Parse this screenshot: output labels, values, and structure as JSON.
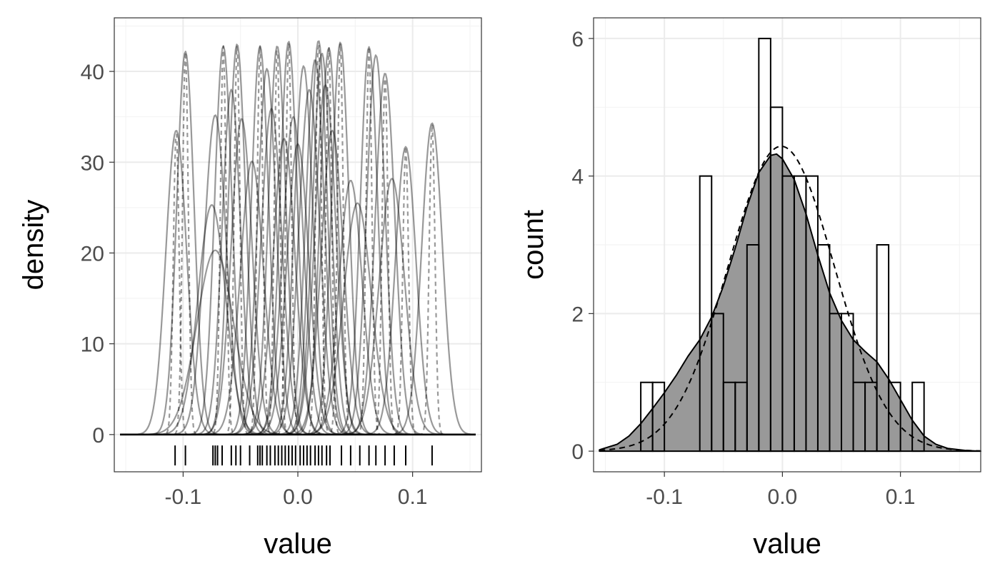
{
  "chart_data": [
    {
      "type": "line",
      "xlabel": "value",
      "ylabel": "density",
      "xlim": [
        -0.16,
        0.16
      ],
      "ylim": [
        -4.1,
        45.9
      ],
      "x_ticks": [
        -0.1,
        0.0,
        0.1
      ],
      "x_tick_labels": [
        "-0.1",
        "0.0",
        "0.1"
      ],
      "y_ticks": [
        0,
        10,
        20,
        30,
        40
      ],
      "y_tick_labels": [
        "0",
        "10",
        "20",
        "30",
        "40"
      ],
      "grid": true,
      "curve_support": [
        -0.155,
        0.155
      ],
      "line_color": "#000000",
      "line_opacity": 0.4,
      "rug_positions": [
        -0.107,
        -0.098,
        -0.074,
        -0.072,
        -0.07,
        -0.066,
        -0.058,
        -0.054,
        -0.05,
        -0.042,
        -0.035,
        -0.033,
        -0.031,
        -0.027,
        -0.024,
        -0.02,
        -0.017,
        -0.014,
        -0.011,
        -0.008,
        -0.005,
        -0.002,
        0.002,
        0.005,
        0.008,
        0.011,
        0.015,
        0.018,
        0.021,
        0.025,
        0.028,
        0.038,
        0.046,
        0.054,
        0.062,
        0.068,
        0.076,
        0.084,
        0.094,
        0.117
      ],
      "series": [
        {
          "mu": -0.106,
          "sigma": 0.009,
          "peak": 33.5,
          "dashed": false
        },
        {
          "mu": -0.106,
          "sigma": 0.0025,
          "peak": 33.5,
          "dashed": true
        },
        {
          "mu": -0.098,
          "sigma": 0.0075,
          "peak": 42.2,
          "dashed": false
        },
        {
          "mu": -0.098,
          "sigma": 0.0025,
          "peak": 42.2,
          "dashed": true
        },
        {
          "mu": -0.075,
          "sigma": 0.012,
          "peak": 25.3,
          "dashed": false
        },
        {
          "mu": -0.072,
          "sigma": 0.016,
          "peak": 20.3,
          "dashed": false
        },
        {
          "mu": -0.072,
          "sigma": 0.0095,
          "peak": 35.2,
          "dashed": false
        },
        {
          "mu": -0.065,
          "sigma": 0.0075,
          "peak": 42.8,
          "dashed": false
        },
        {
          "mu": -0.065,
          "sigma": 0.0025,
          "peak": 42.8,
          "dashed": true
        },
        {
          "mu": -0.058,
          "sigma": 0.008,
          "peak": 38.0,
          "dashed": false
        },
        {
          "mu": -0.053,
          "sigma": 0.0075,
          "peak": 43.0,
          "dashed": false
        },
        {
          "mu": -0.053,
          "sigma": 0.0025,
          "peak": 43.0,
          "dashed": true
        },
        {
          "mu": -0.049,
          "sigma": 0.009,
          "peak": 34.8,
          "dashed": false
        },
        {
          "mu": -0.04,
          "sigma": 0.01,
          "peak": 30.1,
          "dashed": false
        },
        {
          "mu": -0.033,
          "sigma": 0.0075,
          "peak": 42.8,
          "dashed": false
        },
        {
          "mu": -0.033,
          "sigma": 0.0025,
          "peak": 42.8,
          "dashed": true
        },
        {
          "mu": -0.027,
          "sigma": 0.008,
          "peak": 40.3,
          "dashed": false
        },
        {
          "mu": -0.023,
          "sigma": 0.009,
          "peak": 35.9,
          "dashed": false
        },
        {
          "mu": -0.018,
          "sigma": 0.0075,
          "peak": 42.8,
          "dashed": false
        },
        {
          "mu": -0.018,
          "sigma": 0.0025,
          "peak": 42.8,
          "dashed": true
        },
        {
          "mu": -0.012,
          "sigma": 0.0095,
          "peak": 32.6,
          "dashed": false
        },
        {
          "mu": -0.008,
          "sigma": 0.0075,
          "peak": 43.3,
          "dashed": false
        },
        {
          "mu": -0.008,
          "sigma": 0.0025,
          "peak": 43.3,
          "dashed": true
        },
        {
          "mu": -0.004,
          "sigma": 0.009,
          "peak": 35.0,
          "dashed": false
        },
        {
          "mu": 0.0,
          "sigma": 0.0095,
          "peak": 32.0,
          "dashed": false
        },
        {
          "mu": 0.005,
          "sigma": 0.008,
          "peak": 40.6,
          "dashed": false
        },
        {
          "mu": 0.01,
          "sigma": 0.009,
          "peak": 38.0,
          "dashed": false
        },
        {
          "mu": 0.015,
          "sigma": 0.008,
          "peak": 41.3,
          "dashed": false
        },
        {
          "mu": 0.018,
          "sigma": 0.0075,
          "peak": 43.4,
          "dashed": false
        },
        {
          "mu": 0.018,
          "sigma": 0.0025,
          "peak": 43.4,
          "dashed": true
        },
        {
          "mu": 0.021,
          "sigma": 0.008,
          "peak": 42.0,
          "dashed": false
        },
        {
          "mu": 0.024,
          "sigma": 0.009,
          "peak": 38.5,
          "dashed": false
        },
        {
          "mu": 0.027,
          "sigma": 0.0075,
          "peak": 42.6,
          "dashed": false
        },
        {
          "mu": 0.027,
          "sigma": 0.0025,
          "peak": 42.6,
          "dashed": true
        },
        {
          "mu": 0.03,
          "sigma": 0.0095,
          "peak": 33.5,
          "dashed": false
        },
        {
          "mu": 0.037,
          "sigma": 0.0075,
          "peak": 43.2,
          "dashed": false
        },
        {
          "mu": 0.037,
          "sigma": 0.0025,
          "peak": 43.2,
          "dashed": true
        },
        {
          "mu": 0.046,
          "sigma": 0.01,
          "peak": 28.0,
          "dashed": false
        },
        {
          "mu": 0.052,
          "sigma": 0.012,
          "peak": 25.5,
          "dashed": false
        },
        {
          "mu": 0.062,
          "sigma": 0.0075,
          "peak": 42.7,
          "dashed": false
        },
        {
          "mu": 0.062,
          "sigma": 0.0025,
          "peak": 42.7,
          "dashed": true
        },
        {
          "mu": 0.068,
          "sigma": 0.008,
          "peak": 41.8,
          "dashed": false
        },
        {
          "mu": 0.076,
          "sigma": 0.0085,
          "peak": 39.8,
          "dashed": false
        },
        {
          "mu": 0.076,
          "sigma": 0.0025,
          "peak": 39.8,
          "dashed": true
        },
        {
          "mu": 0.082,
          "sigma": 0.011,
          "peak": 28.2,
          "dashed": false
        },
        {
          "mu": 0.094,
          "sigma": 0.009,
          "peak": 31.7,
          "dashed": false
        },
        {
          "mu": 0.094,
          "sigma": 0.0025,
          "peak": 31.7,
          "dashed": true
        },
        {
          "mu": 0.117,
          "sigma": 0.009,
          "peak": 34.3,
          "dashed": false
        },
        {
          "mu": 0.117,
          "sigma": 0.0025,
          "peak": 34.3,
          "dashed": true
        }
      ]
    },
    {
      "type": "bar",
      "xlabel": "value",
      "ylabel": "count",
      "xlim": [
        -0.16,
        0.168
      ],
      "ylim": [
        -0.3,
        6.3
      ],
      "x_ticks": [
        -0.1,
        0.0,
        0.1
      ],
      "x_tick_labels": [
        "-0.1",
        "0.0",
        "0.1"
      ],
      "y_ticks": [
        0,
        2,
        4,
        6
      ],
      "y_tick_labels": [
        "0",
        "2",
        "4",
        "6"
      ],
      "grid": true,
      "histogram": {
        "bin_width": 0.01,
        "bin_starts": [
          -0.12,
          -0.11,
          -0.1,
          -0.09,
          -0.08,
          -0.07,
          -0.06,
          -0.05,
          -0.04,
          -0.03,
          -0.02,
          -0.01,
          0.0,
          0.01,
          0.02,
          0.03,
          0.04,
          0.05,
          0.06,
          0.07,
          0.08,
          0.09,
          0.1,
          0.11
        ],
        "counts": [
          1,
          1,
          0,
          0,
          0,
          4,
          2,
          1,
          1,
          3,
          6,
          5,
          4,
          4,
          4,
          3,
          2,
          2,
          1,
          1,
          3,
          1,
          0,
          1
        ],
        "fill": "#ffffff",
        "stroke": "#000000"
      },
      "kde": {
        "x": [
          -0.155,
          -0.14,
          -0.13,
          -0.12,
          -0.11,
          -0.1,
          -0.09,
          -0.08,
          -0.07,
          -0.06,
          -0.05,
          -0.04,
          -0.03,
          -0.02,
          -0.01,
          -0.005,
          0.0,
          0.01,
          0.02,
          0.03,
          0.04,
          0.05,
          0.06,
          0.07,
          0.08,
          0.09,
          0.1,
          0.11,
          0.12,
          0.13,
          0.14,
          0.155,
          0.168
        ],
        "y": [
          0.02,
          0.1,
          0.22,
          0.4,
          0.62,
          0.85,
          1.1,
          1.38,
          1.62,
          1.95,
          2.4,
          2.95,
          3.55,
          4.05,
          4.3,
          4.32,
          4.25,
          3.95,
          3.45,
          2.85,
          2.3,
          1.9,
          1.62,
          1.45,
          1.3,
          1.05,
          0.75,
          0.45,
          0.22,
          0.1,
          0.04,
          0.01,
          0.0
        ],
        "fill": "#999999",
        "stroke": "#000000"
      },
      "normal_fit": {
        "mean": -0.001,
        "sd": 0.045,
        "n": 50,
        "bin_width": 0.01,
        "x_range": [
          -0.155,
          0.168
        ],
        "dashed": true
      }
    }
  ]
}
